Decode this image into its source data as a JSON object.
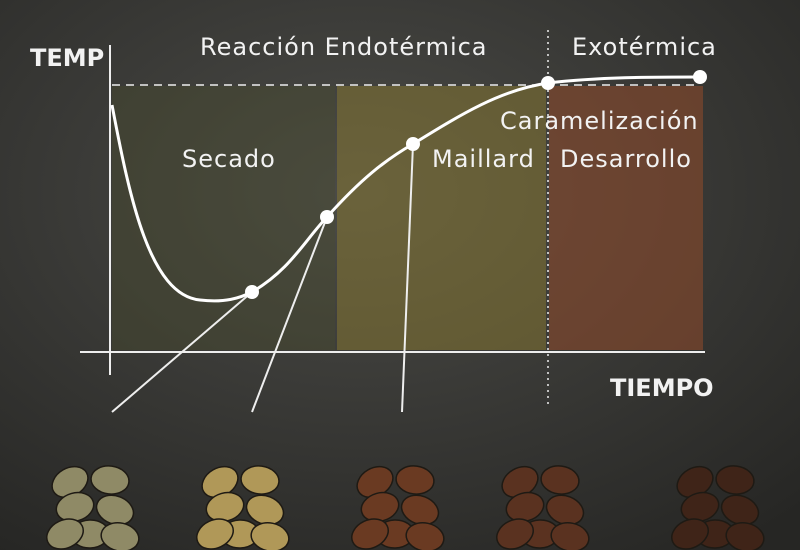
{
  "axes": {
    "y_label": "TEMP",
    "x_label": "TIEMPO"
  },
  "phases": {
    "endothermic": "Reacción Endotérmica",
    "exothermic": "Exotérmica"
  },
  "stages": {
    "drying": "Secado",
    "maillard": "Maillard",
    "caramelization": "Caramelización",
    "development": "Desarrollo"
  }
}
